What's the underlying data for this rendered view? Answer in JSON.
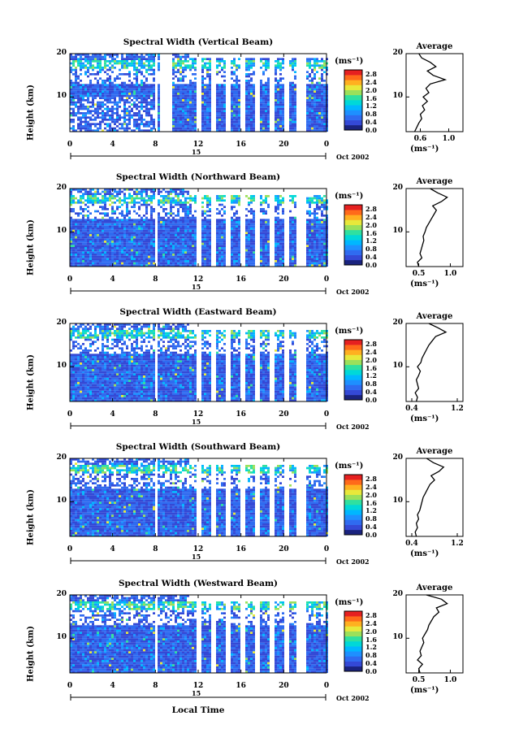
{
  "chart_data": [
    {
      "type": "heatmap",
      "title": "Spectral Width (Vertical Beam)",
      "ylabel": "Height (km)",
      "xlabel": "",
      "x_ticks": [
        "0",
        "4",
        "8",
        "12",
        "16",
        "20",
        "0"
      ],
      "xlim": [
        0,
        24
      ],
      "y_ticks": [
        "20",
        "10"
      ],
      "ylim": [
        2,
        20
      ],
      "colorbar": {
        "unit": "(ms⁻¹)",
        "ticks": [
          "2.8",
          "2.4",
          "2.0",
          "1.6",
          "1.2",
          "0.8",
          "0.4",
          "0.0"
        ],
        "range": [
          0.0,
          3.0
        ]
      },
      "day_label": "15",
      "date_label": "Oct 2002",
      "data_gaps_hours": [
        [
          7.8,
          8.2
        ],
        [
          8.3,
          9.4
        ],
        [
          21.0,
          22.0
        ]
      ],
      "average_profile": {
        "title": "Average",
        "xlabel": "(ms⁻¹)",
        "x_ticks": [
          "0.6",
          "1.0"
        ],
        "xlim": [
          0.4,
          1.2
        ],
        "height_km": [
          2,
          3,
          4,
          5,
          6,
          7,
          8,
          9,
          10,
          11,
          12,
          13,
          14,
          15,
          16,
          17,
          18,
          19,
          20
        ],
        "width": [
          0.52,
          0.55,
          0.58,
          0.62,
          0.6,
          0.66,
          0.63,
          0.7,
          0.64,
          0.72,
          0.68,
          0.74,
          0.95,
          0.78,
          0.7,
          0.82,
          0.74,
          0.62,
          0.58
        ]
      }
    },
    {
      "type": "heatmap",
      "title": "Spectral Width (Northward Beam)",
      "ylabel": "Height (km)",
      "xlabel": "",
      "x_ticks": [
        "0",
        "4",
        "8",
        "12",
        "16",
        "20",
        "0"
      ],
      "xlim": [
        0,
        24
      ],
      "y_ticks": [
        "20",
        "10"
      ],
      "ylim": [
        2,
        20
      ],
      "colorbar": {
        "unit": "(ms⁻¹)",
        "ticks": [
          "2.8",
          "2.4",
          "2.0",
          "1.6",
          "1.2",
          "0.8",
          "0.4",
          "0.0"
        ],
        "range": [
          0.0,
          3.0
        ]
      },
      "day_label": "15",
      "date_label": "Oct 2002",
      "data_gaps_hours": [
        [
          7.8,
          8.2
        ],
        [
          21.0,
          22.0
        ]
      ],
      "average_profile": {
        "title": "Average",
        "xlabel": "(ms⁻¹)",
        "x_ticks": [
          "0.5",
          "1.0"
        ],
        "xlim": [
          0.3,
          1.2
        ],
        "height_km": [
          2,
          3,
          4,
          5,
          6,
          7,
          8,
          9,
          10,
          11,
          12,
          13,
          14,
          15,
          16,
          17,
          18,
          19,
          20
        ],
        "width": [
          0.5,
          0.48,
          0.55,
          0.52,
          0.54,
          0.56,
          0.58,
          0.57,
          0.6,
          0.62,
          0.66,
          0.7,
          0.74,
          0.78,
          0.72,
          0.86,
          0.95,
          0.8,
          0.68
        ]
      }
    },
    {
      "type": "heatmap",
      "title": "Spectral Width (Eastward Beam)",
      "ylabel": "Height (km)",
      "xlabel": "",
      "x_ticks": [
        "0",
        "4",
        "8",
        "12",
        "16",
        "20",
        "0"
      ],
      "xlim": [
        0,
        24
      ],
      "y_ticks": [
        "20",
        "10"
      ],
      "ylim": [
        2,
        20
      ],
      "colorbar": {
        "unit": "(ms⁻¹)",
        "ticks": [
          "2.8",
          "2.4",
          "2.0",
          "1.6",
          "1.2",
          "0.8",
          "0.4",
          "0.0"
        ],
        "range": [
          0.0,
          3.0
        ]
      },
      "day_label": "15",
      "date_label": "Oct 2002",
      "data_gaps_hours": [
        [
          7.8,
          8.2
        ],
        [
          21.0,
          22.0
        ]
      ],
      "average_profile": {
        "title": "Average",
        "xlabel": "(ms⁻¹)",
        "x_ticks": [
          "0.4",
          "1.2"
        ],
        "xlim": [
          0.3,
          1.3
        ],
        "height_km": [
          2,
          3,
          4,
          5,
          6,
          7,
          8,
          9,
          10,
          11,
          12,
          13,
          14,
          15,
          16,
          17,
          18,
          19,
          20
        ],
        "width": [
          0.48,
          0.5,
          0.46,
          0.52,
          0.5,
          0.48,
          0.52,
          0.55,
          0.5,
          0.56,
          0.58,
          0.62,
          0.66,
          0.7,
          0.76,
          0.82,
          1.0,
          0.86,
          0.7
        ]
      }
    },
    {
      "type": "heatmap",
      "title": "Spectral Width (Southward Beam)",
      "ylabel": "Height (km)",
      "xlabel": "",
      "x_ticks": [
        "0",
        "4",
        "8",
        "12",
        "16",
        "20",
        "0"
      ],
      "xlim": [
        0,
        24
      ],
      "y_ticks": [
        "20",
        "10"
      ],
      "ylim": [
        2,
        20
      ],
      "colorbar": {
        "unit": "(ms⁻¹)",
        "ticks": [
          "2.8",
          "2.4",
          "2.0",
          "1.6",
          "1.2",
          "0.8",
          "0.4",
          "0.0"
        ],
        "range": [
          0.0,
          3.0
        ]
      },
      "day_label": "15",
      "date_label": "Oct 2002",
      "data_gaps_hours": [
        [
          7.8,
          8.2
        ],
        [
          21.0,
          22.0
        ]
      ],
      "average_profile": {
        "title": "Average",
        "xlabel": "(ms⁻¹)",
        "x_ticks": [
          "0.4",
          "1.2"
        ],
        "xlim": [
          0.3,
          1.3
        ],
        "height_km": [
          2,
          3,
          4,
          5,
          6,
          7,
          8,
          9,
          10,
          11,
          12,
          13,
          14,
          15,
          16,
          17,
          18,
          19,
          20
        ],
        "width": [
          0.48,
          0.46,
          0.5,
          0.48,
          0.52,
          0.5,
          0.54,
          0.56,
          0.58,
          0.6,
          0.64,
          0.68,
          0.72,
          0.8,
          0.74,
          0.88,
          0.96,
          0.78,
          0.66
        ]
      }
    },
    {
      "type": "heatmap",
      "title": "Spectral Width (Westward Beam)",
      "ylabel": "Height (km)",
      "xlabel": "Local Time",
      "x_ticks": [
        "0",
        "4",
        "8",
        "12",
        "16",
        "20",
        "0"
      ],
      "xlim": [
        0,
        24
      ],
      "y_ticks": [
        "20",
        "10"
      ],
      "ylim": [
        2,
        20
      ],
      "colorbar": {
        "unit": "(ms⁻¹)",
        "ticks": [
          "2.8",
          "2.4",
          "2.0",
          "1.6",
          "1.2",
          "0.8",
          "0.4",
          "0.0"
        ],
        "range": [
          0.0,
          3.0
        ]
      },
      "day_label": "15",
      "date_label": "Oct 2002",
      "data_gaps_hours": [
        [
          7.8,
          8.2
        ],
        [
          21.0,
          22.0
        ]
      ],
      "average_profile": {
        "title": "Average",
        "xlabel": "(ms⁻¹)",
        "x_ticks": [
          "0.5",
          "1.0"
        ],
        "xlim": [
          0.3,
          1.2
        ],
        "height_km": [
          2,
          3,
          4,
          5,
          6,
          7,
          8,
          9,
          10,
          11,
          12,
          13,
          14,
          15,
          16,
          17,
          18,
          19,
          20
        ],
        "width": [
          0.52,
          0.5,
          0.56,
          0.48,
          0.54,
          0.52,
          0.55,
          0.58,
          0.56,
          0.6,
          0.64,
          0.66,
          0.7,
          0.74,
          0.82,
          0.78,
          0.95,
          0.86,
          0.62
        ]
      }
    }
  ],
  "footer": {
    "xlabel": "Local Time"
  },
  "palette": [
    "#1a237e",
    "#3449d6",
    "#2f6bf0",
    "#1e90ff",
    "#00b7ff",
    "#00d8d8",
    "#2fe0a0",
    "#9be05a",
    "#e8e83a",
    "#ffb020",
    "#ff6a1a",
    "#e62020"
  ]
}
